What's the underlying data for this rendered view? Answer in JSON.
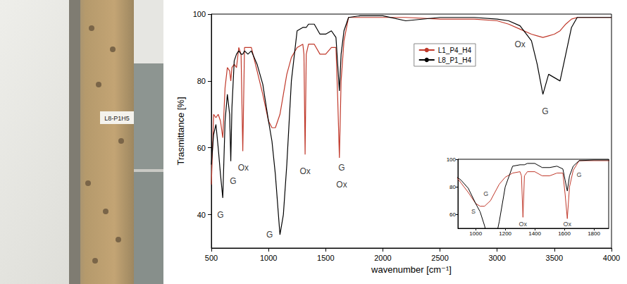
{
  "photo": {
    "label": "L8-P1H5"
  },
  "chart_data": {
    "type": "line",
    "xlabel": "wavenumber [cm⁻¹]",
    "ylabel": "Trasmittance [%]",
    "x": [
      500,
      520,
      540,
      560,
      580,
      600,
      620,
      640,
      660,
      670,
      680,
      700,
      720,
      740,
      760,
      775,
      790,
      820,
      850,
      900,
      950,
      1000,
      1030,
      1060,
      1100,
      1130,
      1160,
      1200,
      1250,
      1300,
      1310,
      1320,
      1330,
      1350,
      1400,
      1450,
      1500,
      1550,
      1590,
      1605,
      1620,
      1635,
      1660,
      1700,
      1800,
      2000,
      2200,
      2500,
      2800,
      3000,
      3100,
      3200,
      3300,
      3350,
      3400,
      3450,
      3500,
      3550,
      3600,
      3650,
      3700,
      3800,
      4000
    ],
    "series": [
      {
        "name": "L1_P4_H4",
        "color": "#c0392b",
        "values": [
          49,
          70,
          69,
          70,
          68,
          63,
          78,
          84,
          83,
          80,
          84,
          85,
          84,
          90,
          88,
          59,
          90,
          90,
          90,
          83,
          76,
          68,
          66,
          66,
          70,
          76,
          82,
          87,
          90,
          91,
          88,
          58,
          88,
          91,
          91,
          88,
          88,
          90,
          90,
          75,
          57,
          80,
          92,
          99,
          99,
          99,
          99,
          98.5,
          98.5,
          98,
          97,
          95.5,
          94,
          93.5,
          93,
          93.5,
          94,
          95,
          97,
          98.5,
          99,
          99,
          99
        ]
      },
      {
        "name": "L8_P1_H4",
        "color": "#000000",
        "values": [
          55,
          64,
          67,
          60,
          52,
          45,
          68,
          76,
          70,
          56,
          72,
          86,
          88,
          89,
          88,
          88,
          89,
          88,
          89,
          85,
          79,
          68,
          62,
          52,
          34,
          40,
          55,
          80,
          95,
          96,
          96,
          96,
          96,
          97,
          97,
          94,
          94,
          95,
          93,
          85,
          77,
          88,
          95,
          99,
          99.5,
          99.5,
          98,
          99,
          99,
          98.5,
          98,
          96.5,
          92,
          85,
          76,
          82,
          81,
          80,
          88,
          96,
          99,
          99,
          99
        ]
      }
    ],
    "xlim": [
      500,
      4000
    ],
    "xticks": [
      500,
      1000,
      1500,
      2000,
      2500,
      3000,
      3500,
      4000
    ],
    "ylim": [
      30,
      100
    ],
    "yticks": [
      40,
      60,
      80,
      100
    ],
    "grid": false,
    "legend": "upper right",
    "annotations": [
      {
        "x": 580,
        "y": 40,
        "text": "G"
      },
      {
        "x": 690,
        "y": 50,
        "text": "G"
      },
      {
        "x": 780,
        "y": 54,
        "text": "Ox"
      },
      {
        "x": 1010,
        "y": 34,
        "text": "G"
      },
      {
        "x": 1320,
        "y": 53,
        "text": "Ox"
      },
      {
        "x": 1640,
        "y": 54,
        "text": "G"
      },
      {
        "x": 1640,
        "y": 49,
        "text": "Ox"
      },
      {
        "x": 3200,
        "y": 91,
        "text": "Ox"
      },
      {
        "x": 3420,
        "y": 71,
        "text": "G"
      }
    ],
    "inset": {
      "xlim": [
        880,
        1900
      ],
      "xticks": [
        1000,
        1200,
        1400,
        1600,
        1800
      ],
      "ylim": [
        50,
        100
      ],
      "yticks": [
        60,
        80,
        100
      ],
      "annotations": [
        {
          "x": 985,
          "y": 62,
          "text": "S"
        },
        {
          "x": 1070,
          "y": 75,
          "text": "G"
        },
        {
          "x": 1320,
          "y": 53,
          "text": "Ox"
        },
        {
          "x": 1620,
          "y": 53,
          "text": "Ox"
        },
        {
          "x": 1700,
          "y": 89,
          "text": "G"
        }
      ]
    }
  }
}
